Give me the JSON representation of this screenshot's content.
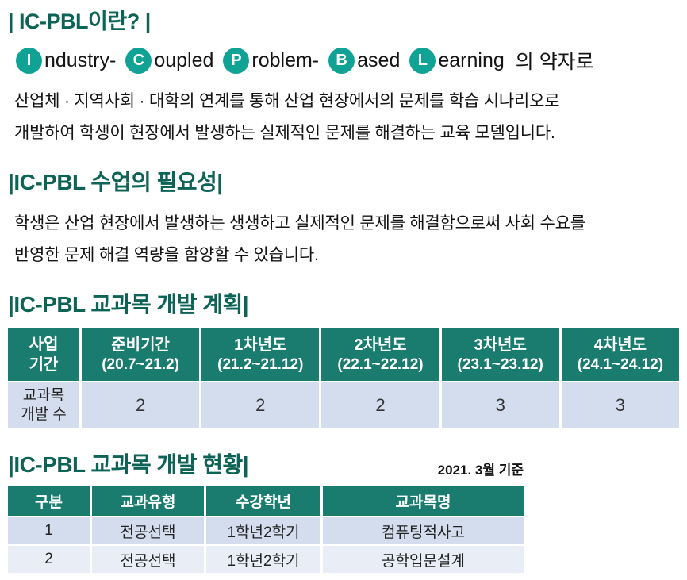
{
  "colors": {
    "heading_teal": "#0d6356",
    "badge_teal": "#10a295",
    "table_header_teal": "#1a7c6e",
    "row_blue": "#d3ddee",
    "row_blue_light": "#e9edf6"
  },
  "what_is": {
    "title": "| IC-PBL이란? |",
    "acronym": {
      "parts": [
        {
          "letter": "I",
          "rest": "ndustry-"
        },
        {
          "letter": "C",
          "rest": "oupled"
        },
        {
          "letter": "P",
          "rest": "roblem-"
        },
        {
          "letter": "B",
          "rest": "ased"
        },
        {
          "letter": "L",
          "rest": "earning"
        }
      ],
      "suffix": "의 약자로"
    },
    "desc_line1": "산업체 · 지역사회 · 대학의 연계를 통해 산업 현장에서의 문제를 학습 시나리오로",
    "desc_line2": "개발하여 학생이 현장에서 발생하는 실제적인 문제를 해결하는 교육 모델입니다."
  },
  "necessity": {
    "title": "|IC-PBL 수업의 필요성|",
    "desc_line1": "학생은 산업 현장에서 발생하는 생생하고 실제적인 문제를 해결함으로써 사회 수요를",
    "desc_line2": "반영한 문제 해결 역량을 함양할 수 있습니다."
  },
  "plan": {
    "title": "|IC-PBL 교과목 개발 계획|",
    "table": {
      "header": [
        {
          "line1": "사업",
          "line2": "기간"
        },
        {
          "line1": "준비기간",
          "line2": "(20.7~21.2)"
        },
        {
          "line1": "1차년도",
          "line2": "(21.2~21.12)"
        },
        {
          "line1": "2차년도",
          "line2": "(22.1~22.12)"
        },
        {
          "line1": "3차년도",
          "line2": "(23.1~23.12)"
        },
        {
          "line1": "4차년도",
          "line2": "(24.1~24.12)"
        }
      ],
      "row_label_line1": "교과목",
      "row_label_line2": "개발 수",
      "values": [
        "2",
        "2",
        "2",
        "3",
        "3"
      ]
    }
  },
  "status": {
    "title": "|IC-PBL 교과목 개발 현황|",
    "as_of": "2021. 3월 기준",
    "table": {
      "headers": [
        "구분",
        "교과유형",
        "수강학년",
        "교과목명"
      ],
      "rows": [
        [
          "1",
          "전공선택",
          "1학년2학기",
          "컴퓨팅적사고"
        ],
        [
          "2",
          "전공선택",
          "1학년2학기",
          "공학입문설계"
        ]
      ]
    }
  }
}
